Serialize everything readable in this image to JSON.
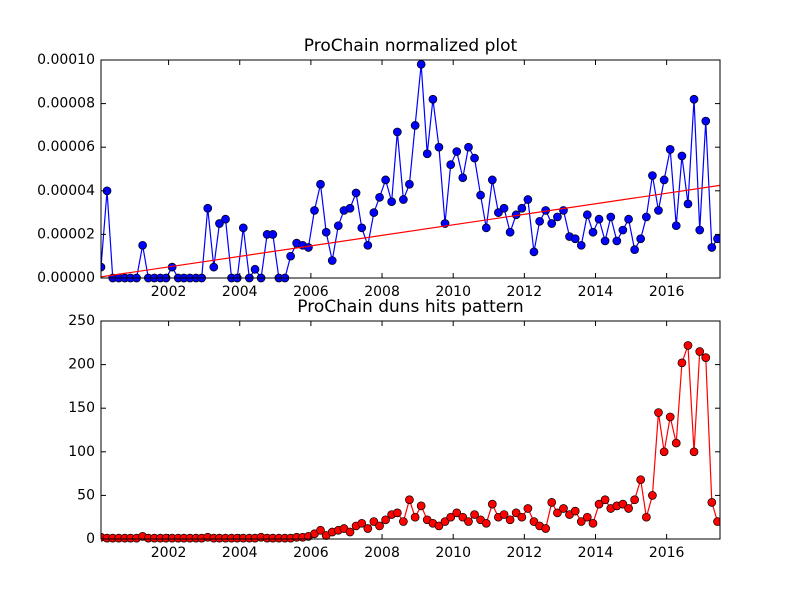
{
  "chart_data": [
    {
      "type": "line",
      "title": "ProChain normalized plot",
      "x": [
        2000.1,
        2000.27,
        2000.43,
        2000.6,
        2000.77,
        2000.93,
        2001.1,
        2001.27,
        2001.43,
        2001.6,
        2001.77,
        2001.93,
        2002.1,
        2002.27,
        2002.43,
        2002.6,
        2002.77,
        2002.93,
        2003.1,
        2003.27,
        2003.43,
        2003.6,
        2003.77,
        2003.93,
        2004.1,
        2004.27,
        2004.43,
        2004.6,
        2004.77,
        2004.93,
        2005.1,
        2005.27,
        2005.43,
        2005.6,
        2005.77,
        2005.93,
        2006.1,
        2006.27,
        2006.43,
        2006.6,
        2006.77,
        2006.93,
        2007.1,
        2007.27,
        2007.43,
        2007.6,
        2007.77,
        2007.93,
        2008.1,
        2008.27,
        2008.43,
        2008.6,
        2008.77,
        2008.93,
        2009.1,
        2009.27,
        2009.43,
        2009.6,
        2009.77,
        2009.93,
        2010.1,
        2010.27,
        2010.43,
        2010.6,
        2010.77,
        2010.93,
        2011.1,
        2011.27,
        2011.43,
        2011.6,
        2011.77,
        2011.93,
        2012.1,
        2012.27,
        2012.43,
        2012.6,
        2012.77,
        2012.93,
        2013.1,
        2013.27,
        2013.43,
        2013.6,
        2013.77,
        2013.93,
        2014.1,
        2014.27,
        2014.43,
        2014.6,
        2014.77,
        2014.93,
        2015.1,
        2015.27,
        2015.43,
        2015.6,
        2015.77,
        2015.93,
        2016.1,
        2016.27,
        2016.43,
        2016.6,
        2016.77,
        2016.93,
        2017.1,
        2017.27,
        2017.43
      ],
      "series": [
        {
          "color": "#0000ff",
          "marker": true,
          "values": [
            5e-06,
            4e-05,
            0,
            0,
            0,
            0,
            0,
            1.5e-05,
            0,
            0,
            0,
            0,
            5e-06,
            0,
            0,
            0,
            0,
            0,
            3.2e-05,
            5e-06,
            2.5e-05,
            2.7e-05,
            0,
            0,
            2.3e-05,
            0,
            4e-06,
            0,
            2e-05,
            2e-05,
            0,
            0,
            1e-05,
            1.6e-05,
            1.5e-05,
            1.4e-05,
            3.1e-05,
            4.3e-05,
            2.1e-05,
            8e-06,
            2.4e-05,
            3.1e-05,
            3.2e-05,
            3.9e-05,
            2.3e-05,
            1.5e-05,
            3e-05,
            3.7e-05,
            4.5e-05,
            3.5e-05,
            6.7e-05,
            3.6e-05,
            4.3e-05,
            7e-05,
            9.8e-05,
            5.7e-05,
            8.2e-05,
            6e-05,
            2.5e-05,
            5.2e-05,
            5.8e-05,
            4.6e-05,
            6e-05,
            5.5e-05,
            3.8e-05,
            2.3e-05,
            4.5e-05,
            3e-05,
            3.2e-05,
            2.1e-05,
            2.9e-05,
            3.2e-05,
            3.6e-05,
            1.2e-05,
            2.6e-05,
            3.1e-05,
            2.5e-05,
            2.8e-05,
            3.1e-05,
            1.9e-05,
            1.8e-05,
            1.5e-05,
            2.9e-05,
            2.1e-05,
            2.7e-05,
            1.7e-05,
            2.8e-05,
            1.7e-05,
            2.2e-05,
            2.7e-05,
            1.3e-05,
            1.8e-05,
            2.8e-05,
            4.7e-05,
            3.1e-05,
            4.5e-05,
            5.9e-05,
            2.4e-05,
            5.6e-05,
            3.4e-05,
            8.2e-05,
            2.2e-05,
            7.2e-05,
            1.4e-05,
            1.8e-05
          ]
        },
        {
          "color": "#ff0000",
          "marker": false,
          "x": [
            2000.1,
            2017.5
          ],
          "values": [
            5e-07,
            4.25e-05
          ]
        }
      ],
      "xlim": [
        2000.1,
        2017.5
      ],
      "xticks": [
        2002,
        2004,
        2006,
        2008,
        2010,
        2012,
        2014,
        2016
      ],
      "ylim": [
        0,
        0.0001
      ],
      "yticks": [
        {
          "value": 0,
          "label": "0.00000"
        },
        {
          "value": 2e-05,
          "label": "0.00002"
        },
        {
          "value": 4e-05,
          "label": "0.00004"
        },
        {
          "value": 6e-05,
          "label": "0.00006"
        },
        {
          "value": 8e-05,
          "label": "0.00008"
        },
        {
          "value": 0.0001,
          "label": "0.00010"
        }
      ]
    },
    {
      "type": "line",
      "title": "ProChain duns hits pattern",
      "x": [
        2000.1,
        2000.27,
        2000.43,
        2000.6,
        2000.77,
        2000.93,
        2001.1,
        2001.27,
        2001.43,
        2001.6,
        2001.77,
        2001.93,
        2002.1,
        2002.27,
        2002.43,
        2002.6,
        2002.77,
        2002.93,
        2003.1,
        2003.27,
        2003.43,
        2003.6,
        2003.77,
        2003.93,
        2004.1,
        2004.27,
        2004.43,
        2004.6,
        2004.77,
        2004.93,
        2005.1,
        2005.27,
        2005.43,
        2005.6,
        2005.77,
        2005.93,
        2006.1,
        2006.27,
        2006.43,
        2006.6,
        2006.77,
        2006.93,
        2007.1,
        2007.27,
        2007.43,
        2007.6,
        2007.77,
        2007.93,
        2008.1,
        2008.27,
        2008.43,
        2008.6,
        2008.77,
        2008.93,
        2009.1,
        2009.27,
        2009.43,
        2009.6,
        2009.77,
        2009.93,
        2010.1,
        2010.27,
        2010.43,
        2010.6,
        2010.77,
        2010.93,
        2011.1,
        2011.27,
        2011.43,
        2011.6,
        2011.77,
        2011.93,
        2012.1,
        2012.27,
        2012.43,
        2012.6,
        2012.77,
        2012.93,
        2013.1,
        2013.27,
        2013.43,
        2013.6,
        2013.77,
        2013.93,
        2014.1,
        2014.27,
        2014.43,
        2014.6,
        2014.77,
        2014.93,
        2015.1,
        2015.27,
        2015.43,
        2015.6,
        2015.77,
        2015.93,
        2016.1,
        2016.27,
        2016.43,
        2016.6,
        2016.77,
        2016.93,
        2017.1,
        2017.27,
        2017.43
      ],
      "series": [
        {
          "color": "#ff0000",
          "marker": true,
          "values": [
            2,
            1,
            1,
            1,
            1,
            1,
            1,
            3,
            1,
            1,
            1,
            1,
            1,
            1,
            1,
            1,
            1,
            1,
            2,
            1,
            1,
            1,
            1,
            1,
            1,
            1,
            1,
            2,
            1,
            1,
            1,
            1,
            1,
            2,
            2,
            3,
            6,
            10,
            4,
            8,
            10,
            12,
            8,
            15,
            18,
            12,
            20,
            15,
            22,
            28,
            30,
            20,
            45,
            25,
            38,
            22,
            18,
            15,
            20,
            25,
            30,
            25,
            20,
            28,
            22,
            18,
            40,
            25,
            28,
            22,
            30,
            25,
            35,
            20,
            15,
            12,
            42,
            30,
            35,
            28,
            32,
            20,
            25,
            18,
            40,
            45,
            35,
            38,
            40,
            35,
            45,
            68,
            25,
            50,
            145,
            100,
            140,
            110,
            202,
            222,
            100,
            215,
            208,
            42,
            20
          ]
        }
      ],
      "xlim": [
        2000.1,
        2017.5
      ],
      "xticks": [
        2002,
        2004,
        2006,
        2008,
        2010,
        2012,
        2014,
        2016
      ],
      "ylim": [
        0,
        250
      ],
      "yticks": [
        0,
        50,
        100,
        150,
        200,
        250
      ]
    }
  ]
}
